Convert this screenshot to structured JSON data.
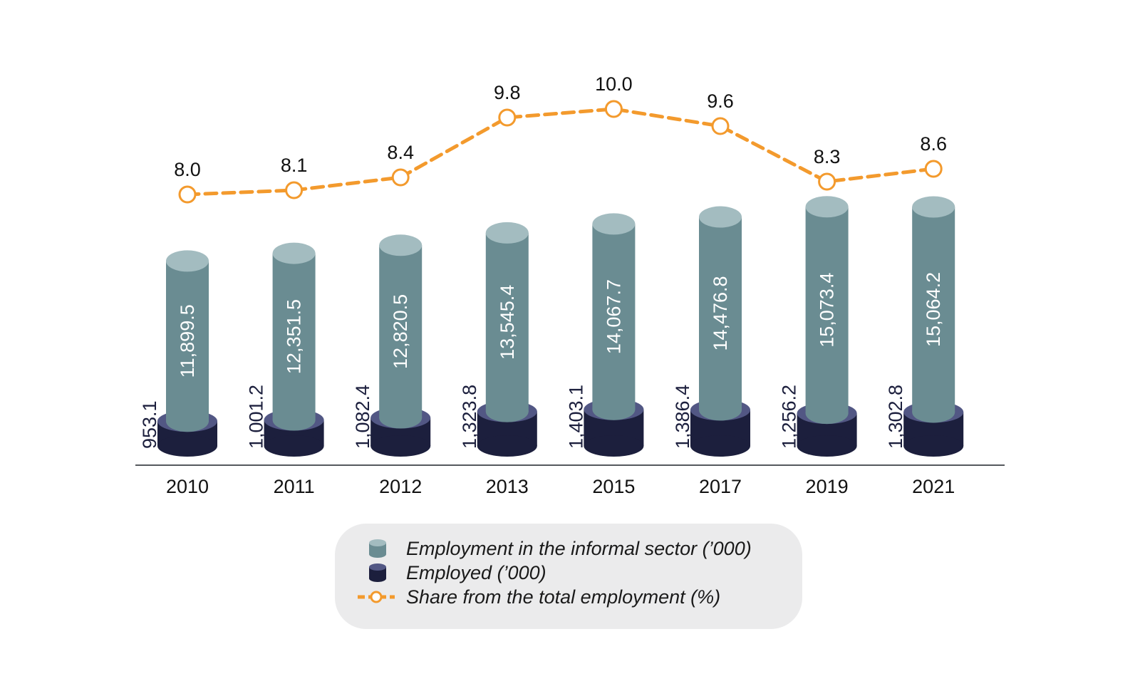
{
  "colors": {
    "informal": "#6a8c92",
    "informal_top": "#a3bcc0",
    "employed": "#1c1f3d",
    "employed_top": "#525784",
    "share": "#f39a2d",
    "axis": "#55595e",
    "legend_bg": "#ebebec"
  },
  "legend": {
    "informal_label": "Employment in the informal sector (’000)",
    "employed_label": "Employed (’000)",
    "share_label": "Share from the total employment (%)"
  },
  "chart_data": {
    "type": "bar",
    "categories": [
      "2010",
      "2011",
      "2012",
      "2013",
      "2015",
      "2017",
      "2019",
      "2021"
    ],
    "series": [
      {
        "name": "Employment in the informal sector (’000)",
        "values": [
          11899.5,
          12351.5,
          12820.5,
          13545.4,
          14067.7,
          14476.8,
          15073.4,
          15064.2
        ],
        "labels": [
          "11,899.5",
          "12,351.5",
          "12,820.5",
          "13,545.4",
          "14,067.7",
          "14,476.8",
          "15,073.4",
          "15,064.2"
        ]
      },
      {
        "name": "Employed (’000)",
        "values": [
          953.1,
          1001.2,
          1082.4,
          1323.8,
          1403.1,
          1386.4,
          1256.2,
          1302.8
        ],
        "labels": [
          "953.1",
          "1,001.2",
          "1,082.4",
          "1,323.8",
          "1,403.1",
          "1,386.4",
          "1,256.2",
          "1,302.8"
        ]
      },
      {
        "name": "Share from the total employment (%)",
        "type": "line",
        "values": [
          8.0,
          8.1,
          8.4,
          9.8,
          10.0,
          9.6,
          8.3,
          8.6
        ],
        "labels": [
          "8.0",
          "8.1",
          "8.4",
          "9.8",
          "10.0",
          "9.6",
          "8.3",
          "8.6"
        ]
      }
    ],
    "grid": false,
    "legend_position": "bottom"
  }
}
